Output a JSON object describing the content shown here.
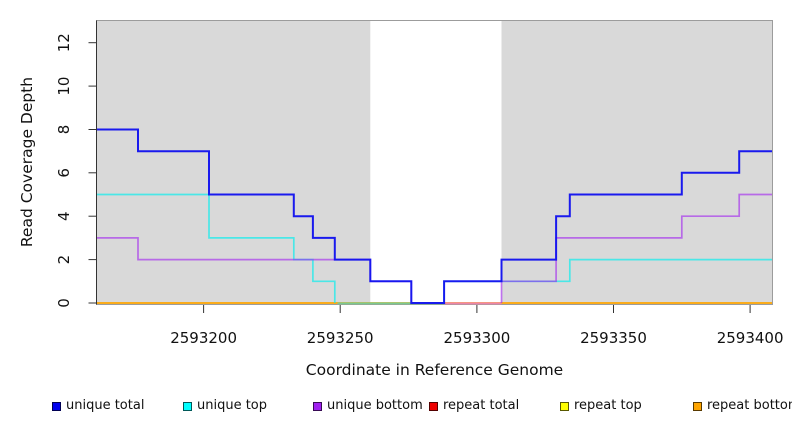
{
  "axes": {
    "x_label": "Coordinate in Reference Genome",
    "y_label": "Read Coverage Depth"
  },
  "legend": {
    "items": [
      {
        "label": "unique total",
        "color": "#0000EE"
      },
      {
        "label": "unique top",
        "color": "#00FFFF"
      },
      {
        "label": "unique bottom",
        "color": "#A020F0"
      },
      {
        "label": "repeat total",
        "color": "#EE0000"
      },
      {
        "label": "repeat top",
        "color": "#FFFF00"
      },
      {
        "label": "repeat bottom",
        "color": "#FFA500"
      }
    ]
  },
  "chart_data": {
    "type": "line",
    "subtype": "step-coverage",
    "title": "",
    "xlabel": "Coordinate in Reference Genome",
    "ylabel": "Read Coverage Depth",
    "x_axis": {
      "min": 2593161,
      "max": 2593408,
      "ticks": [
        2593200,
        2593250,
        2593300,
        2593350,
        2593400
      ]
    },
    "y_axis": {
      "min": 0,
      "max": 13,
      "ticks": [
        0,
        2,
        4,
        6,
        8,
        10,
        12
      ]
    },
    "grid": false,
    "legend_position": "bottom",
    "plot_bg": "#FFFFFF",
    "region_fill": "#D9D9D9",
    "border_color": "#9C9C9C",
    "axis_color": "#333333",
    "shaded_regions": [
      {
        "from": 2593161,
        "to": 2593261
      },
      {
        "from": 2593309,
        "to": 2593408
      }
    ],
    "series": [
      {
        "name": "repeat total",
        "color": "#EE0000",
        "width": 1.5,
        "opacity": 1,
        "layer": "under",
        "hide_zero_runs": true,
        "start_depth": 0,
        "changes": []
      },
      {
        "name": "repeat top",
        "color": "#FFFF00",
        "width": 1.5,
        "opacity": 1,
        "layer": "under",
        "hide_zero_runs": true,
        "start_depth": 0,
        "changes": []
      },
      {
        "name": "repeat bottom",
        "color": "#FFA500",
        "width": 1.8,
        "opacity": 1,
        "layer": "under",
        "hide_zero_runs": false,
        "start_depth": 0,
        "changes": []
      },
      {
        "name": "unique top",
        "color": "#00EEEE",
        "width": 1.7,
        "opacity": 0.66,
        "layer": "over",
        "hide_zero_runs": true,
        "start_depth": 5,
        "changes": [
          [
            2593202,
            3
          ],
          [
            2593233,
            2
          ],
          [
            2593240,
            1
          ],
          [
            2593248,
            0
          ],
          [
            2593288,
            1
          ],
          [
            2593334,
            2
          ]
        ]
      },
      {
        "name": "unique bottom",
        "color": "#A020F0",
        "width": 1.7,
        "opacity": 0.6,
        "layer": "over",
        "hide_zero_runs": true,
        "start_depth": 3,
        "changes": [
          [
            2593176,
            2
          ],
          [
            2593261,
            1
          ],
          [
            2593276,
            0
          ],
          [
            2593309,
            1
          ],
          [
            2593329,
            3
          ],
          [
            2593375,
            4
          ],
          [
            2593396,
            5
          ]
        ]
      },
      {
        "name": "unique total",
        "color": "#1414EE",
        "width": 2,
        "opacity": 0.97,
        "layer": "over",
        "hide_zero_runs": false,
        "start_depth": 8,
        "changes": [
          [
            2593176,
            7
          ],
          [
            2593202,
            5
          ],
          [
            2593233,
            4
          ],
          [
            2593240,
            3
          ],
          [
            2593248,
            2
          ],
          [
            2593261,
            1
          ],
          [
            2593276,
            0
          ],
          [
            2593288,
            1
          ],
          [
            2593309,
            2
          ],
          [
            2593329,
            4
          ],
          [
            2593334,
            5
          ],
          [
            2593375,
            6
          ],
          [
            2593396,
            7
          ]
        ]
      }
    ],
    "zero_overlap_segments": [
      {
        "from": 2593249,
        "to": 2593288,
        "color": "#7BC98E"
      },
      {
        "from": 2593288,
        "to": 2593309,
        "color": "#EC84A8"
      }
    ]
  }
}
